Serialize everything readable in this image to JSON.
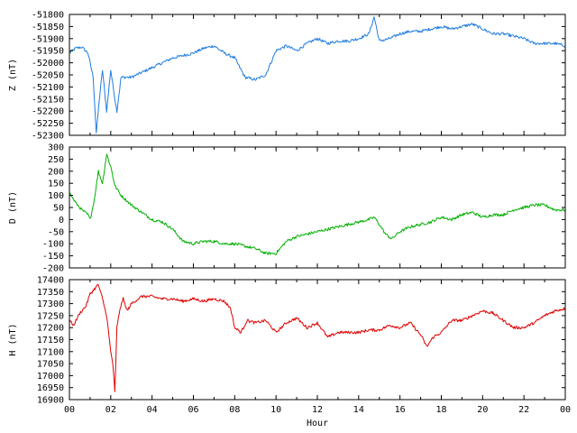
{
  "chart_data": [
    {
      "type": "line",
      "ylabel": "Z (nT)",
      "ylim": [
        -52300,
        -51800
      ],
      "yticks": [
        -52300,
        -52250,
        -52200,
        -52150,
        -52100,
        -52050,
        -52000,
        -51950,
        -51900,
        -51850,
        -51800
      ],
      "xlim": [
        0,
        24
      ],
      "color": "#1e7ce0",
      "series": [
        {
          "x": [
            0,
            0.3,
            0.6,
            0.9,
            1.0,
            1.15,
            1.3,
            1.45,
            1.6,
            1.8,
            2.0,
            2.2,
            2.3,
            2.5,
            3.0,
            3.5,
            4.0,
            4.5,
            5.0,
            5.5,
            6.0,
            6.5,
            7.0,
            7.5,
            8.0,
            8.5,
            9.0,
            9.5,
            10.0,
            10.5,
            11.0,
            11.5,
            12.0,
            12.5,
            13.0,
            13.5,
            14.0,
            14.5,
            14.75,
            15.0,
            15.5,
            16.0,
            16.5,
            17.0,
            17.5,
            18.0,
            18.5,
            19.0,
            19.5,
            20.0,
            20.5,
            21.0,
            21.5,
            22.0,
            22.5,
            23.0,
            23.5,
            24.0
          ],
          "y": [
            -51960,
            -51940,
            -51935,
            -51960,
            -52000,
            -52060,
            -52290,
            -52150,
            -52030,
            -52200,
            -52030,
            -52150,
            -52200,
            -52060,
            -52060,
            -52040,
            -52020,
            -52000,
            -51980,
            -51970,
            -51960,
            -51940,
            -51930,
            -51960,
            -51980,
            -52060,
            -52070,
            -52050,
            -51950,
            -51930,
            -51950,
            -51920,
            -51900,
            -51920,
            -51910,
            -51910,
            -51900,
            -51880,
            -51810,
            -51910,
            -51900,
            -51880,
            -51870,
            -51870,
            -51860,
            -51850,
            -51860,
            -51850,
            -51840,
            -51860,
            -51880,
            -51880,
            -51890,
            -51900,
            -51920,
            -51920,
            -51920,
            -51930
          ]
        }
      ]
    },
    {
      "type": "line",
      "ylabel": "D (nT)",
      "ylim": [
        -200,
        300
      ],
      "yticks": [
        -200,
        -150,
        -100,
        -50,
        0,
        50,
        100,
        150,
        200,
        250,
        300
      ],
      "xlim": [
        0,
        24
      ],
      "color": "#00b000",
      "series": [
        {
          "x": [
            0,
            0.3,
            0.6,
            0.9,
            1.0,
            1.2,
            1.4,
            1.6,
            1.8,
            2.0,
            2.2,
            2.5,
            3.0,
            3.5,
            4.0,
            4.5,
            5.0,
            5.5,
            6.0,
            6.5,
            7.0,
            7.5,
            8.0,
            8.5,
            9.0,
            9.5,
            10.0,
            10.5,
            11.0,
            11.5,
            12.0,
            12.5,
            13.0,
            13.5,
            14.0,
            14.5,
            14.75,
            15.0,
            15.3,
            15.6,
            16.0,
            16.5,
            17.0,
            17.5,
            18.0,
            18.5,
            19.0,
            19.5,
            20.0,
            20.5,
            21.0,
            21.5,
            22.0,
            22.5,
            23.0,
            23.5,
            24.0
          ],
          "y": [
            110,
            70,
            40,
            20,
            0,
            80,
            200,
            150,
            270,
            220,
            140,
            100,
            60,
            30,
            0,
            -10,
            -40,
            -90,
            -100,
            -90,
            -90,
            -100,
            -100,
            -110,
            -120,
            -140,
            -140,
            -90,
            -70,
            -60,
            -50,
            -40,
            -30,
            -20,
            -10,
            0,
            10,
            -20,
            -60,
            -80,
            -50,
            -30,
            -20,
            -10,
            10,
            0,
            20,
            30,
            10,
            20,
            20,
            40,
            50,
            60,
            60,
            40,
            40
          ]
        }
      ]
    },
    {
      "type": "line",
      "ylabel": "H (nT)",
      "xlabel": "Hour",
      "ylim": [
        16900,
        17400
      ],
      "yticks": [
        16900,
        16950,
        17000,
        17050,
        17100,
        17150,
        17200,
        17250,
        17300,
        17350,
        17400
      ],
      "xlim": [
        0,
        24
      ],
      "xticks": [
        "00",
        "02",
        "04",
        "06",
        "08",
        "10",
        "12",
        "14",
        "16",
        "18",
        "20",
        "22",
        "00"
      ],
      "color": "#e00000",
      "series": [
        {
          "x": [
            0,
            0.2,
            0.5,
            0.8,
            1.0,
            1.2,
            1.4,
            1.6,
            1.8,
            2.0,
            2.1,
            2.2,
            2.3,
            2.45,
            2.6,
            2.8,
            3.0,
            3.5,
            4.0,
            4.5,
            5.0,
            5.5,
            6.0,
            6.5,
            7.0,
            7.5,
            7.8,
            8.0,
            8.3,
            8.6,
            9.0,
            9.5,
            10.0,
            10.5,
            11.0,
            11.5,
            12.0,
            12.5,
            13.0,
            13.5,
            14.0,
            14.5,
            15.0,
            15.5,
            16.0,
            16.5,
            17.0,
            17.3,
            17.6,
            18.0,
            18.5,
            19.0,
            19.5,
            20.0,
            20.5,
            21.0,
            21.5,
            22.0,
            22.5,
            23.0,
            23.5,
            24.0
          ],
          "y": [
            17230,
            17210,
            17260,
            17290,
            17340,
            17360,
            17380,
            17320,
            17250,
            17100,
            17050,
            16930,
            17200,
            17280,
            17320,
            17270,
            17300,
            17330,
            17330,
            17320,
            17320,
            17310,
            17320,
            17310,
            17320,
            17310,
            17280,
            17200,
            17180,
            17230,
            17220,
            17230,
            17180,
            17220,
            17240,
            17200,
            17220,
            17160,
            17180,
            17180,
            17180,
            17190,
            17190,
            17210,
            17200,
            17220,
            17170,
            17120,
            17160,
            17180,
            17230,
            17230,
            17250,
            17270,
            17260,
            17230,
            17200,
            17200,
            17220,
            17250,
            17270,
            17280
          ]
        }
      ]
    }
  ]
}
